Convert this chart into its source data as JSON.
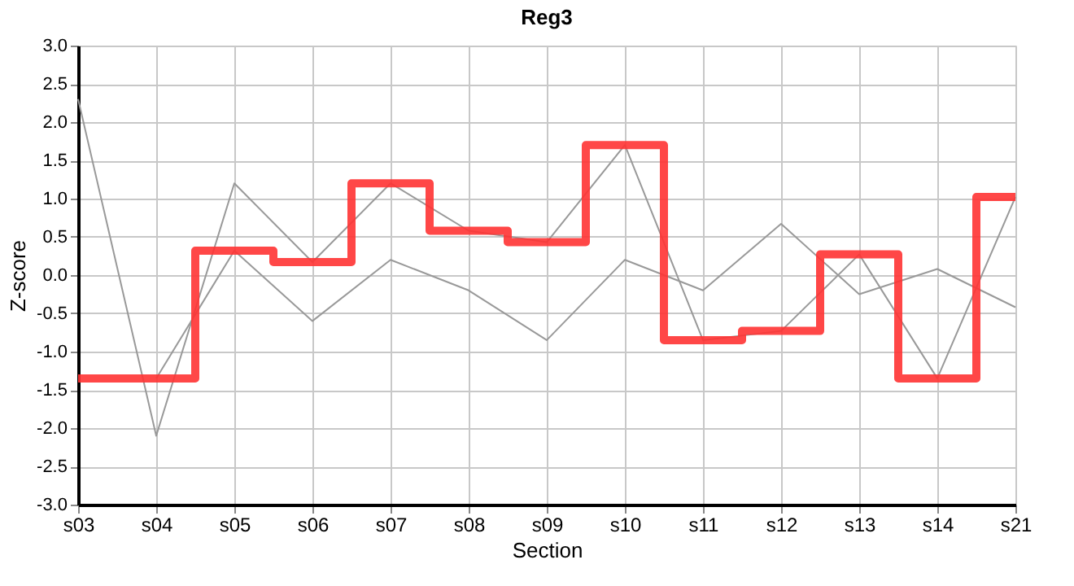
{
  "chart_data": {
    "type": "line",
    "title": "Reg3",
    "xlabel": "Section",
    "ylabel": "Z-score",
    "categories": [
      "s03",
      "s04",
      "s05",
      "s06",
      "s07",
      "s08",
      "s09",
      "s10",
      "s11",
      "s12",
      "s13",
      "s14",
      "s21"
    ],
    "series": [
      {
        "type": "line",
        "color": "#999999",
        "values": [
          2.3,
          -2.1,
          1.2,
          0.17,
          1.2,
          0.58,
          0.43,
          1.7,
          -0.85,
          -0.73,
          0.27,
          -1.35,
          1.02
        ]
      },
      {
        "type": "line",
        "color": "#999999",
        "values": [
          null,
          -1.35,
          0.32,
          -0.6,
          0.2,
          -0.2,
          -0.85,
          0.2,
          -0.2,
          0.67,
          -0.25,
          0.08,
          -0.42
        ]
      },
      {
        "type": "step",
        "color": "#ff3333",
        "values": [
          -1.35,
          -1.35,
          0.32,
          0.17,
          1.2,
          0.58,
          0.43,
          1.7,
          -0.85,
          -0.73,
          0.27,
          -1.35,
          1.02
        ]
      }
    ],
    "ylim": [
      -3,
      3
    ],
    "yticks": [
      {
        "value": -3,
        "label": "-3.0"
      },
      {
        "value": -2.5,
        "label": "-2.5"
      },
      {
        "value": -2,
        "label": "-2.0"
      },
      {
        "value": -1.5,
        "label": "-1.5"
      },
      {
        "value": -1,
        "label": "-1.0"
      },
      {
        "value": -0.5,
        "label": "-0.5"
      },
      {
        "value": 0,
        "label": "0.0"
      },
      {
        "value": 0.5,
        "label": "0.5"
      },
      {
        "value": 1,
        "label": "1.0"
      },
      {
        "value": 1.5,
        "label": "1.5"
      },
      {
        "value": 2,
        "label": "2.0"
      },
      {
        "value": 2.5,
        "label": "2.5"
      },
      {
        "value": 3,
        "label": "3.0"
      }
    ],
    "grid": true,
    "legend": false,
    "marker": "none",
    "line_style": "solid"
  }
}
